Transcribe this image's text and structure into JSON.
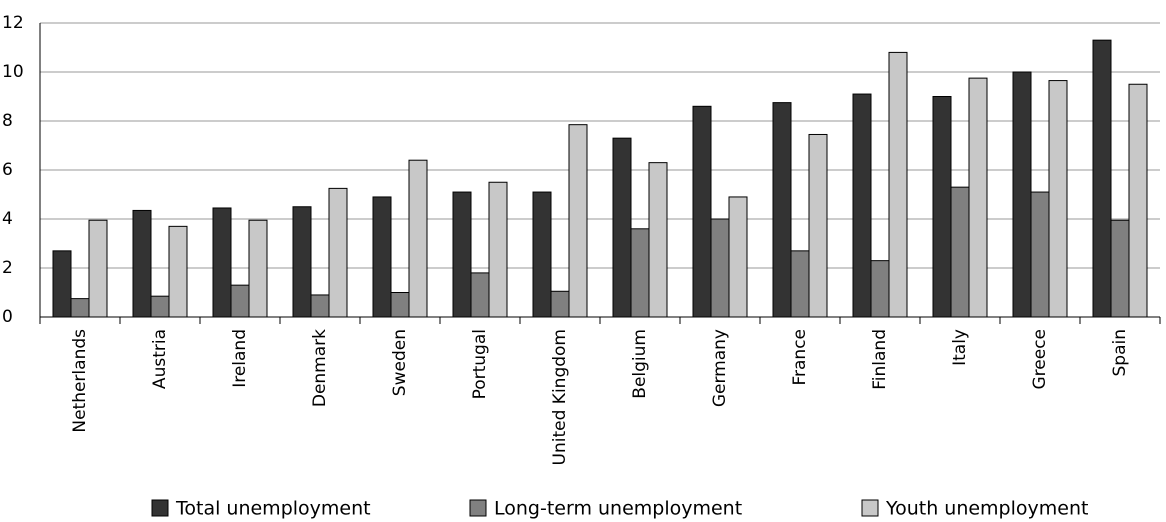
{
  "chart_data": {
    "type": "bar",
    "categories": [
      "Netherlands",
      "Austria",
      "Ireland",
      "Denmark",
      "Sweden",
      "Portugal",
      "United Kingdom",
      "Belgium",
      "Germany",
      "France",
      "Finland",
      "Italy",
      "Greece",
      "Spain"
    ],
    "series": [
      {
        "name": "Total unemployment",
        "color": "#333333",
        "values": [
          2.7,
          4.35,
          4.45,
          4.5,
          4.9,
          5.1,
          5.1,
          7.3,
          8.6,
          8.75,
          9.1,
          9.0,
          10.0,
          11.3
        ]
      },
      {
        "name": "Long-term unemployment",
        "color": "#808080",
        "values": [
          0.75,
          0.85,
          1.3,
          0.9,
          1.0,
          1.8,
          1.05,
          3.6,
          4.0,
          2.7,
          2.3,
          5.3,
          5.1,
          3.95
        ]
      },
      {
        "name": "Youth unemployment",
        "color": "#c8c8c8",
        "values": [
          3.95,
          3.7,
          3.95,
          5.25,
          6.4,
          5.5,
          7.85,
          6.3,
          4.9,
          7.45,
          10.8,
          9.75,
          9.65,
          9.5
        ]
      }
    ],
    "ylim": [
      0,
      12
    ],
    "yticks": [
      0,
      2,
      4,
      6,
      8,
      10,
      12
    ],
    "grid": true,
    "legend": "bottom"
  }
}
